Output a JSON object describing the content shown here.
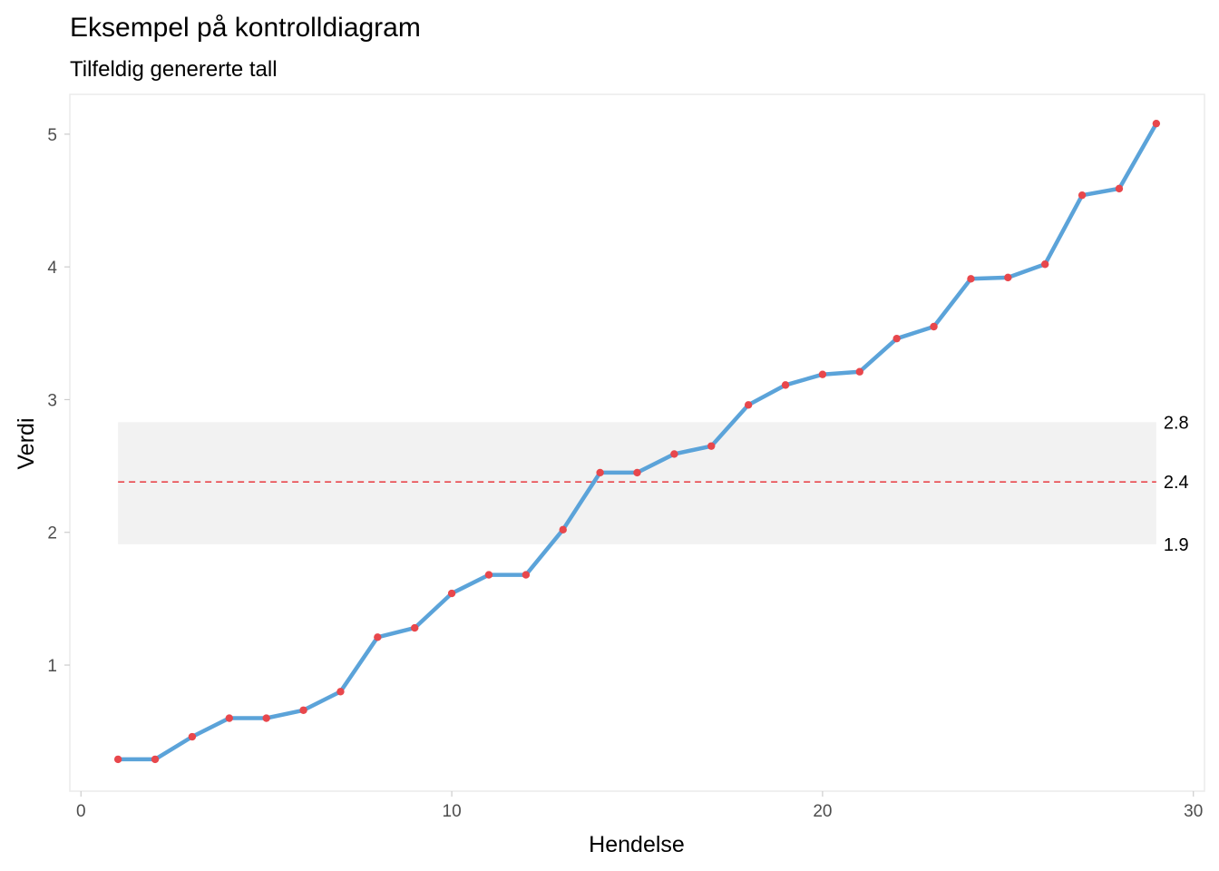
{
  "chart_data": {
    "type": "line",
    "title": "Eksempel på kontrolldiagram",
    "subtitle": "Tilfeldig genererte tall",
    "xlabel": "Hendelse",
    "ylabel": "Verdi",
    "xlim": [
      -0.3,
      30.3
    ],
    "ylim": [
      0.05,
      5.3
    ],
    "x_ticks": [
      0,
      10,
      20,
      30
    ],
    "y_ticks": [
      1,
      2,
      3,
      4,
      5
    ],
    "grid": false,
    "legend": "none",
    "x": [
      1,
      2,
      3,
      4,
      5,
      6,
      7,
      8,
      9,
      10,
      11,
      12,
      13,
      14,
      15,
      16,
      17,
      18,
      19,
      20,
      21,
      22,
      23,
      24,
      25,
      26,
      27,
      28,
      29
    ],
    "series": [
      {
        "values": [
          0.29,
          0.29,
          0.46,
          0.6,
          0.6,
          0.66,
          0.8,
          1.21,
          1.28,
          1.54,
          1.68,
          1.68,
          2.02,
          2.45,
          2.45,
          2.59,
          2.65,
          2.96,
          3.11,
          3.19,
          3.21,
          3.46,
          3.55,
          3.91,
          3.92,
          4.02,
          4.54,
          4.59,
          5.08
        ],
        "line_color": "#5BA3D9",
        "point_color": "#E8474C"
      }
    ],
    "band": {
      "lower": 1.91,
      "upper": 2.83,
      "x_from": 1,
      "x_to": 29,
      "color": "#F2F2F2"
    },
    "center_line": {
      "value": 2.38,
      "color": "#E8474C",
      "style": "dashed"
    },
    "band_labels": [
      {
        "value": 2.83,
        "text": "2.8"
      },
      {
        "value": 2.38,
        "text": "2.4"
      },
      {
        "value": 1.91,
        "text": "1.9"
      }
    ],
    "colors": {
      "panel_border": "#EBEBEB",
      "tick": "#CCCCCC"
    }
  }
}
